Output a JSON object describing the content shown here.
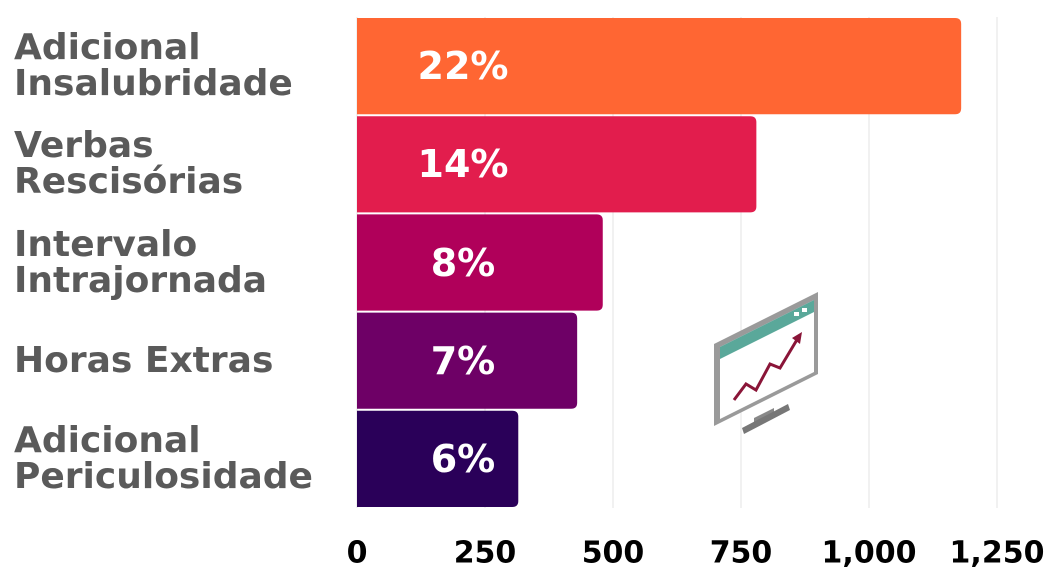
{
  "chart_data": {
    "type": "bar",
    "orientation": "horizontal",
    "categories": [
      "Adicional\nInsalubridade",
      "Verbas\nRescisórias",
      "Intervalo\nIntrajornada",
      "Horas Extras",
      "Adicional\nPericulosidade"
    ],
    "values": [
      1180,
      780,
      480,
      430,
      315
    ],
    "colors": [
      "#ff6633",
      "#e21d4d",
      "#b0005a",
      "#6e0066",
      "#2a0059"
    ],
    "annotations": [
      "22%",
      "14%",
      "8%",
      "7%",
      "6%"
    ],
    "xlim": [
      0,
      1250
    ],
    "xticks": [
      0,
      250,
      500,
      750,
      {
        "value": 1000,
        "label": "1,000"
      },
      {
        "value": 1250,
        "label": "1,250"
      }
    ],
    "grid": true
  }
}
